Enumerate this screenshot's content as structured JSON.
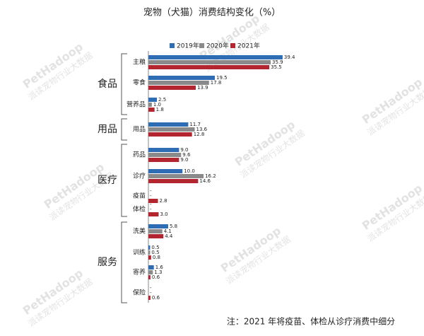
{
  "chart_data": {
    "type": "bar",
    "orientation": "horizontal",
    "title": "宠物（犬猫）消费结构变化（%）",
    "groups": [
      {
        "name": "食品",
        "categories": [
          "主粮",
          "零食",
          "营养品"
        ]
      },
      {
        "name": "用品",
        "categories": [
          "用品"
        ]
      },
      {
        "name": "医疗",
        "categories": [
          "药品",
          "诊疗",
          "疫苗",
          "体检"
        ]
      },
      {
        "name": "服务",
        "categories": [
          "洗美",
          "训练",
          "寄养",
          "保险"
        ]
      }
    ],
    "series": [
      {
        "name": "2019年",
        "color": "#2e6db4",
        "values": [
          39.4,
          19.5,
          2.5,
          11.7,
          9.0,
          10.0,
          null,
          null,
          5.8,
          0.5,
          1.6,
          null
        ],
        "value_labels": [
          "39.4",
          "19.5",
          "2.5",
          "11.7",
          "9.0",
          "10.0",
          "-",
          "-",
          "5.8",
          "0.5",
          "1.6",
          "-"
        ]
      },
      {
        "name": "2020年",
        "color": "#8a8a8a",
        "values": [
          35.9,
          17.8,
          1.0,
          13.6,
          9.6,
          16.2,
          null,
          null,
          4.1,
          0.5,
          1.3,
          null
        ],
        "value_labels": [
          "35.9",
          "17.8",
          "1.0",
          "13.6",
          "9.6",
          "16.2",
          "-",
          "-",
          "4.1",
          "0.5",
          "1.3",
          "-"
        ]
      },
      {
        "name": "2021年",
        "color": "#b3252f",
        "values": [
          35.5,
          13.9,
          1.8,
          12.8,
          9.0,
          14.6,
          2.8,
          3.0,
          4.4,
          0.8,
          0.6,
          0.6
        ],
        "value_labels": [
          "35.5",
          "13.9",
          "1.8",
          "12.8",
          "9.0",
          "14.6",
          "2.8",
          "3.0",
          "4.4",
          "0.8",
          "0.6",
          "0.6"
        ]
      }
    ],
    "legend_position": "top",
    "note": "注：2021 年将疫苗、体检从诊疗消费中细分",
    "watermark": [
      "PetHadoop",
      "派读宠物行业大数据"
    ]
  }
}
